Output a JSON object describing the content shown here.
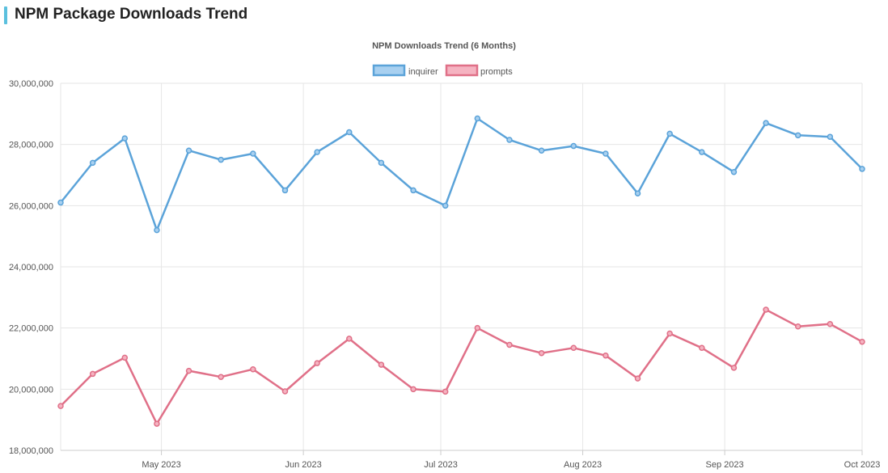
{
  "page": {
    "title": "NPM Package Downloads Trend",
    "accent_color": "#5bc0de"
  },
  "chart_data": {
    "type": "line",
    "title": "NPM Downloads Trend (6 Months)",
    "legend_position": "top",
    "grid": true,
    "ylim": [
      18000000,
      30000000
    ],
    "y_ticks": [
      18000000,
      20000000,
      22000000,
      24000000,
      26000000,
      28000000,
      30000000
    ],
    "y_tick_labels": [
      "18,000,000",
      "20,000,000",
      "22,000,000",
      "24,000,000",
      "26,000,000",
      "28,000,000",
      "30,000,000"
    ],
    "xlim": [
      "2023-04-09",
      "2023-10-01"
    ],
    "x_ticks": [
      "2023-05-01",
      "2023-06-01",
      "2023-07-01",
      "2023-08-01",
      "2023-09-01",
      "2023-10-01"
    ],
    "x_tick_labels": [
      "May 2023",
      "Jun 2023",
      "Jul 2023",
      "Aug 2023",
      "Sep 2023",
      "Oct 2023"
    ],
    "x": [
      "2023-04-09",
      "2023-04-16",
      "2023-04-23",
      "2023-04-30",
      "2023-05-07",
      "2023-05-14",
      "2023-05-21",
      "2023-05-28",
      "2023-06-04",
      "2023-06-11",
      "2023-06-18",
      "2023-06-25",
      "2023-07-02",
      "2023-07-09",
      "2023-07-16",
      "2023-07-23",
      "2023-07-30",
      "2023-08-06",
      "2023-08-13",
      "2023-08-20",
      "2023-08-27",
      "2023-09-03",
      "2023-09-10",
      "2023-09-17",
      "2023-09-24",
      "2023-10-01"
    ],
    "series": [
      {
        "name": "inquirer",
        "color": "#5ba3d9",
        "fill": "#a8d0f0",
        "values": [
          26100000,
          27400000,
          28200000,
          25200000,
          27800000,
          27500000,
          27700000,
          26500000,
          27750000,
          28400000,
          27400000,
          26500000,
          26000000,
          28850000,
          28150000,
          27800000,
          27950000,
          27700000,
          26400000,
          28350000,
          27750000,
          27100000,
          28700000,
          28300000,
          28250000,
          27200000
        ]
      },
      {
        "name": "prompts",
        "color": "#e07088",
        "fill": "#f5b3c1",
        "values": [
          19450000,
          20500000,
          21030000,
          18870000,
          20600000,
          20400000,
          20650000,
          19930000,
          20850000,
          21650000,
          20800000,
          20000000,
          19920000,
          22000000,
          21450000,
          21180000,
          21350000,
          21100000,
          20350000,
          21820000,
          21350000,
          20700000,
          22600000,
          22050000,
          22130000,
          21550000
        ]
      }
    ]
  }
}
